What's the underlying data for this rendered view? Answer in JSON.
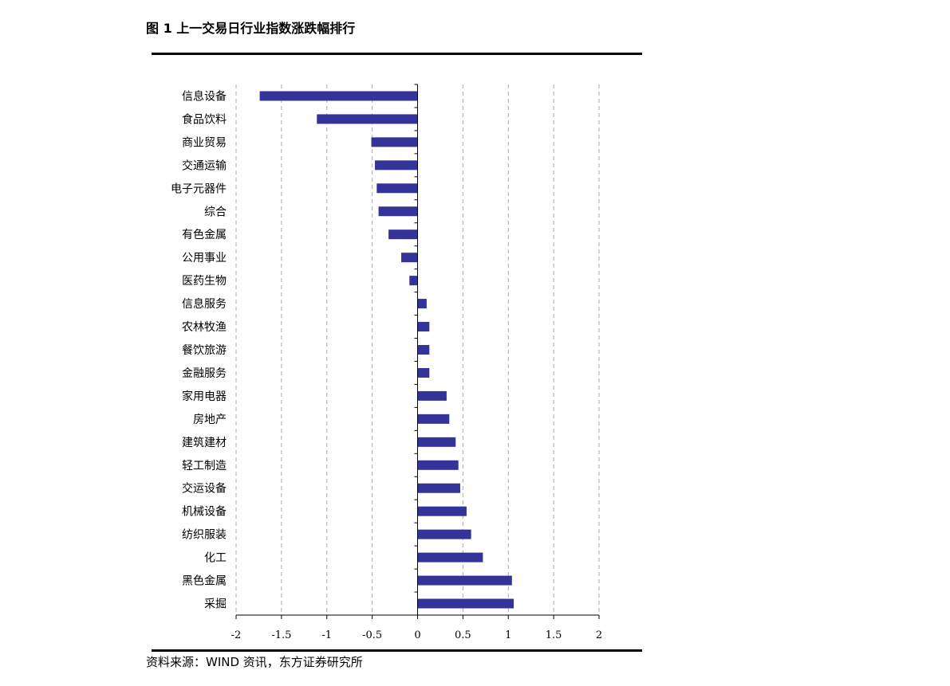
{
  "header": {
    "title": "图 1  上一交易日行业指数涨跌幅排行"
  },
  "footer": {
    "source": "资料来源：WIND 资讯，东方证券研究所"
  },
  "colors": {
    "bar": "#333399",
    "grid": "#aaaaaa",
    "axis": "#000000"
  },
  "chart_data": {
    "type": "bar",
    "orientation": "horizontal",
    "title": "上一交易日行业指数涨跌幅排行",
    "xlabel": "",
    "ylabel": "",
    "xlim": [
      -2,
      2
    ],
    "grid": true,
    "x_ticks": [
      -2,
      -1.5,
      -1,
      -0.5,
      0,
      0.5,
      1,
      1.5,
      2
    ],
    "x_tick_labels": [
      "-2",
      "-1.5",
      "-1",
      "-0.5",
      "0",
      "0.5",
      "1",
      "1.5",
      "2"
    ],
    "categories": [
      "信息设备",
      "食品饮料",
      "商业贸易",
      "交通运输",
      "电子元器件",
      "综合",
      "有色金属",
      "公用事业",
      "医药生物",
      "信息服务",
      "农林牧渔",
      "餐饮旅游",
      "金融服务",
      "家用电器",
      "房地产",
      "建筑建材",
      "轻工制造",
      "交运设备",
      "机械设备",
      "纺织服装",
      "化工",
      "黑色金属",
      "采掘"
    ],
    "values": [
      -1.74,
      -1.11,
      -0.51,
      -0.47,
      -0.45,
      -0.43,
      -0.32,
      -0.18,
      -0.09,
      0.1,
      0.13,
      0.13,
      0.13,
      0.32,
      0.35,
      0.42,
      0.45,
      0.47,
      0.54,
      0.59,
      0.72,
      1.04,
      1.06
    ]
  }
}
